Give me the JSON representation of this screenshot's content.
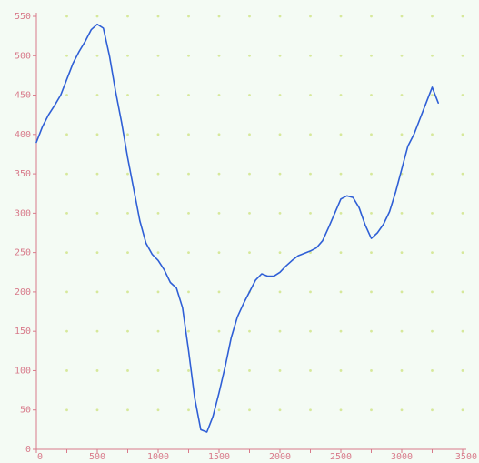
{
  "chart_data": {
    "type": "line",
    "title": "",
    "xlabel": "",
    "ylabel": "",
    "xlim": [
      0,
      3500
    ],
    "ylim": [
      0,
      550
    ],
    "x_ticks": [
      0,
      250,
      500,
      750,
      1000,
      1250,
      1500,
      1750,
      2000,
      2250,
      2500,
      2750,
      3000,
      3250,
      3500
    ],
    "y_ticks": [
      0,
      50,
      100,
      150,
      200,
      250,
      300,
      350,
      400,
      450,
      500,
      550
    ],
    "grid": "dotted",
    "series": [
      {
        "x": [
          0,
          50,
          100,
          150,
          200,
          250,
          300,
          350,
          400,
          450,
          500,
          550,
          600,
          650,
          700,
          750,
          800,
          850,
          900,
          950,
          1000,
          1050,
          1100,
          1150,
          1200,
          1250,
          1300,
          1350,
          1400,
          1450,
          1500,
          1550,
          1600,
          1650,
          1700,
          1750,
          1800,
          1850,
          1900,
          1950,
          2000,
          2050,
          2100,
          2150,
          2200,
          2250,
          2300,
          2350,
          2400,
          2450,
          2500,
          2550,
          2600,
          2650,
          2700,
          2750,
          2800,
          2850,
          2900,
          2950,
          3000,
          3050,
          3100,
          3150,
          3200,
          3250,
          3300
        ],
        "values": [
          390,
          410,
          425,
          437,
          450,
          470,
          490,
          505,
          518,
          533,
          540,
          535,
          500,
          455,
          415,
          370,
          330,
          290,
          262,
          248,
          240,
          228,
          212,
          205,
          180,
          125,
          65,
          25,
          22,
          42,
          72,
          105,
          142,
          168,
          185,
          200,
          215,
          223,
          220,
          220,
          225,
          233,
          240,
          246,
          249,
          252,
          256,
          265,
          282,
          300,
          318,
          322,
          320,
          307,
          285,
          268,
          275,
          286,
          302,
          327,
          356,
          385,
          400,
          420,
          440,
          460,
          440
        ]
      }
    ],
    "colors": {
      "line": "#2f5fd6",
      "axis": "#d87a8a",
      "tick_label": "#d87a8a",
      "grid_dot": "#d6e89a",
      "background": "#f4fbf4"
    }
  }
}
